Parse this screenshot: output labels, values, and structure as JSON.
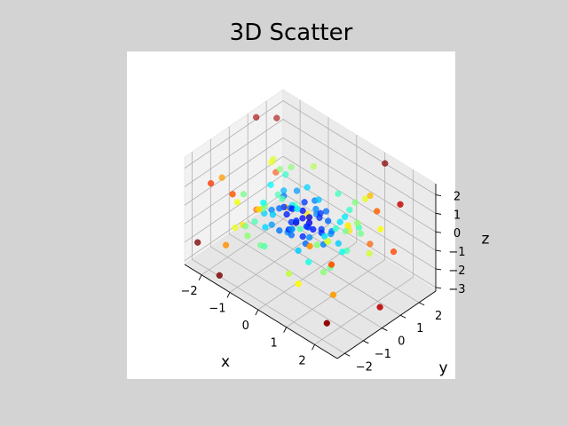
{
  "chart_data": {
    "type": "scatter",
    "title": "3D Scatter",
    "xlabel": "x",
    "ylabel": "y",
    "zlabel": "z",
    "xlim": [
      -2.6,
      2.8
    ],
    "ylim": [
      -2.4,
      2.9
    ],
    "zlim": [
      -3.2,
      2.6
    ],
    "xticks": [
      -2,
      -1,
      0,
      1,
      2
    ],
    "yticks": [
      -2,
      -1,
      0,
      1,
      2
    ],
    "zticks": [
      -3,
      -2,
      -1,
      0,
      1,
      2
    ],
    "tick_labels": {
      "x": [
        "−2",
        "−1",
        "0",
        "1",
        "2"
      ],
      "y": [
        "−2",
        "−1",
        "0",
        "1",
        "2"
      ],
      "z": [
        "−3",
        "−2",
        "−1",
        "0",
        "1",
        "2"
      ]
    },
    "grid": true,
    "colormap": "jet",
    "color_encoding": "distance from origin",
    "colors": {
      "pane_light": "#f2f2f2",
      "pane_mid": "#ebebeb",
      "pane_dark": "#e6e6e6",
      "grid": "#b0b0b0"
    },
    "points": [
      [
        0.1,
        0.2,
        0.1
      ],
      [
        -0.2,
        0.3,
        -0.3
      ],
      [
        0.3,
        -0.1,
        0.2
      ],
      [
        -0.1,
        -0.2,
        -0.1
      ],
      [
        0.4,
        0.4,
        -0.4
      ],
      [
        -0.3,
        -0.4,
        0.3
      ],
      [
        0.2,
        -0.3,
        -0.5
      ],
      [
        0.0,
        0.0,
        0.5
      ],
      [
        -0.5,
        0.2,
        0.0
      ],
      [
        0.5,
        -0.2,
        0.1
      ],
      [
        0.3,
        0.5,
        0.3
      ],
      [
        -0.4,
        0.0,
        -0.5
      ],
      [
        0.1,
        -0.5,
        0.4
      ],
      [
        -0.2,
        0.4,
        0.5
      ],
      [
        0.6,
        0.1,
        -0.2
      ],
      [
        -0.6,
        -0.1,
        0.2
      ],
      [
        0.2,
        0.6,
        -0.1
      ],
      [
        -0.1,
        -0.6,
        -0.2
      ],
      [
        0.0,
        0.3,
        -0.6
      ],
      [
        0.4,
        -0.4,
        0.3
      ],
      [
        0.7,
        0.3,
        0.4
      ],
      [
        -0.7,
        0.4,
        -0.3
      ],
      [
        0.5,
        -0.6,
        -0.4
      ],
      [
        -0.5,
        -0.5,
        0.5
      ],
      [
        0.3,
        0.8,
        0.2
      ],
      [
        -0.3,
        -0.8,
        -0.3
      ],
      [
        0.8,
        -0.1,
        -0.5
      ],
      [
        -0.8,
        0.2,
        0.4
      ],
      [
        0.1,
        0.5,
        0.8
      ],
      [
        -0.2,
        -0.3,
        -0.8
      ],
      [
        0.6,
        0.6,
        -0.6
      ],
      [
        -0.6,
        0.6,
        0.6
      ],
      [
        0.9,
        0.2,
        0.1
      ],
      [
        -0.9,
        -0.3,
        -0.1
      ],
      [
        0.2,
        -0.9,
        0.3
      ],
      [
        -0.1,
        0.9,
        -0.4
      ],
      [
        0.4,
        0.1,
        0.9
      ],
      [
        -0.4,
        -0.2,
        -0.9
      ],
      [
        0.7,
        -0.7,
        0.2
      ],
      [
        -0.7,
        -0.6,
        -0.5
      ],
      [
        1.0,
        0.4,
        -0.6
      ],
      [
        -1.0,
        0.5,
        0.3
      ],
      [
        0.5,
        -1.0,
        -0.5
      ],
      [
        -0.4,
        -1.0,
        0.6
      ],
      [
        0.9,
        0.9,
        0.4
      ],
      [
        -0.9,
        0.8,
        -0.6
      ],
      [
        0.3,
        0.4,
        1.1
      ],
      [
        -0.5,
        0.2,
        -1.1
      ],
      [
        1.1,
        -0.5,
        0.5
      ],
      [
        -1.1,
        -0.4,
        -0.4
      ],
      [
        0.6,
        1.1,
        -0.3
      ],
      [
        -0.6,
        -1.1,
        -0.2
      ],
      [
        0.2,
        -0.6,
        1.2
      ],
      [
        -0.3,
        0.7,
        1.0
      ],
      [
        1.2,
        0.3,
        -0.8
      ],
      [
        -1.2,
        0.1,
        0.7
      ],
      [
        0.8,
        -0.9,
        -0.9
      ],
      [
        -0.8,
        -0.9,
        0.8
      ],
      [
        1.0,
        1.0,
        0.8
      ],
      [
        -1.0,
        1.1,
        -0.9
      ],
      [
        1.3,
        -0.2,
        0.9
      ],
      [
        -1.3,
        -0.6,
        -0.9
      ],
      [
        0.4,
        1.3,
        0.9
      ],
      [
        -0.5,
        -1.3,
        -1.0
      ],
      [
        1.1,
        0.7,
        -1.1
      ],
      [
        -1.0,
        0.6,
        1.1
      ],
      [
        0.7,
        -1.2,
        1.0
      ],
      [
        -0.7,
        -1.2,
        -1.2
      ],
      [
        1.4,
        0.9,
        0.3
      ],
      [
        -1.4,
        0.8,
        -0.5
      ],
      [
        0.6,
        1.4,
        -1.0
      ],
      [
        -0.5,
        -1.4,
        1.1
      ],
      [
        1.5,
        -0.8,
        -0.6
      ],
      [
        -1.5,
        -0.9,
        0.6
      ],
      [
        0.3,
        0.9,
        -1.5
      ],
      [
        -0.2,
        -0.8,
        1.5
      ],
      [
        1.2,
        1.3,
        -0.5
      ],
      [
        -1.2,
        1.2,
        0.9
      ],
      [
        1.3,
        -1.2,
        0.7
      ],
      [
        -1.3,
        -1.1,
        -0.8
      ],
      [
        1.6,
        0.5,
        1.0
      ],
      [
        -1.6,
        0.4,
        -1.0
      ],
      [
        0.8,
        1.6,
        0.6
      ],
      [
        -0.9,
        -1.6,
        -0.6
      ],
      [
        1.0,
        -0.4,
        -1.6
      ],
      [
        -1.0,
        0.3,
        1.6
      ],
      [
        0.5,
        -1.5,
        -1.4
      ],
      [
        -0.6,
        1.5,
        1.3
      ],
      [
        1.7,
        1.0,
        -0.9
      ],
      [
        -1.7,
        1.0,
        1.0
      ],
      [
        1.6,
        -1.1,
        1.1
      ],
      [
        -1.6,
        -1.2,
        -1.1
      ],
      [
        1.1,
        1.7,
        1.0
      ],
      [
        -1.2,
        -1.7,
        1.0
      ],
      [
        0.9,
        -1.6,
        -1.5
      ],
      [
        -0.9,
        1.6,
        -1.6
      ],
      [
        1.8,
        -0.3,
        1.6
      ],
      [
        -1.8,
        -0.5,
        -1.6
      ],
      [
        0.4,
        1.9,
        -1.5
      ],
      [
        -0.3,
        -1.9,
        1.6
      ],
      [
        1.4,
        1.5,
        1.6
      ],
      [
        -1.5,
        1.4,
        -1.7
      ],
      [
        1.9,
        1.3,
        0.4
      ],
      [
        -1.9,
        1.2,
        0.5
      ],
      [
        2.0,
        -1.4,
        -1.2
      ],
      [
        -2.0,
        -1.3,
        1.3
      ],
      [
        1.5,
        -1.9,
        1.3
      ],
      [
        -1.4,
        -2.0,
        -1.3
      ],
      [
        2.1,
        0.8,
        1.9
      ],
      [
        -2.1,
        0.7,
        -1.9
      ],
      [
        1.0,
        2.1,
        -1.8
      ],
      [
        -1.1,
        -2.1,
        1.8
      ],
      [
        2.2,
        -1.8,
        0.9
      ],
      [
        -2.2,
        1.9,
        -0.8
      ],
      [
        1.9,
        2.0,
        -1.3
      ],
      [
        -2.0,
        -1.9,
        1.4
      ],
      [
        2.4,
        1.6,
        2.0
      ],
      [
        -2.3,
        2.1,
        1.9
      ],
      [
        2.3,
        -2.2,
        -1.9
      ],
      [
        -2.4,
        -2.0,
        -2.1
      ],
      [
        2.6,
        0.2,
        -2.4
      ],
      [
        -2.5,
        1.3,
        2.3
      ],
      [
        1.2,
        2.6,
        2.4
      ],
      [
        -1.3,
        -2.5,
        -2.5
      ]
    ]
  }
}
